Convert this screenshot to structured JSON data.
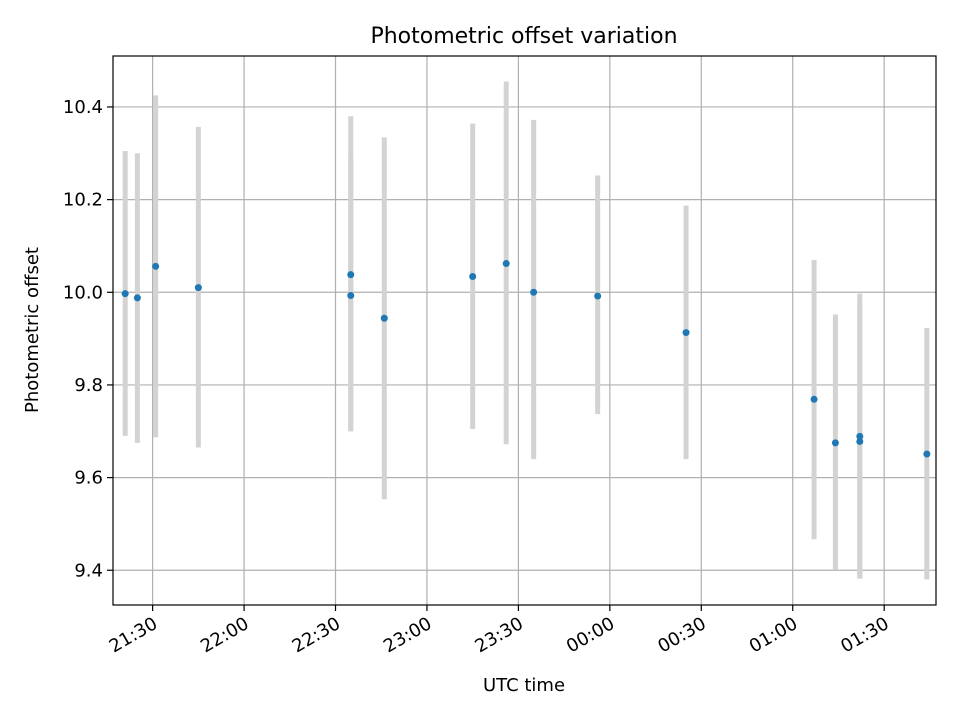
{
  "chart_data": {
    "type": "scatter",
    "title": "Photometric offset variation",
    "xlabel": "UTC time",
    "ylabel": "Photometric offset",
    "x_ticks": [
      "21:30",
      "22:00",
      "22:30",
      "23:00",
      "23:30",
      "00:00",
      "00:30",
      "01:00",
      "01:30"
    ],
    "y_ticks": [
      "9.4",
      "9.6",
      "9.8",
      "10.0",
      "10.2",
      "10.4"
    ],
    "xlim": [
      "21:17",
      "01:47"
    ],
    "ylim": [
      9.325,
      10.51
    ],
    "grid": true,
    "series": [
      {
        "color": "#1f77b4",
        "errorbar_color": "#d3d3d3",
        "x": [
          "21:21",
          "21:25",
          "21:31",
          "21:45",
          "23:15",
          "23:35",
          "23:56",
          "00:25",
          "01:07",
          "01:14",
          "01:22",
          "01:22",
          "01:44",
          "22:35",
          "22:35",
          "22:46",
          "23:26"
        ],
        "y": [
          9.997,
          9.988,
          10.056,
          10.01,
          10.034,
          10.0,
          9.992,
          9.913,
          9.769,
          9.675,
          9.678,
          9.689,
          9.651,
          9.993,
          10.038,
          9.944,
          10.062
        ],
        "yerr_low": [
          9.69,
          9.675,
          9.687,
          9.665,
          9.705,
          9.64,
          9.737,
          9.64,
          9.467,
          9.402,
          9.382,
          9.382,
          9.38,
          9.7,
          9.7,
          9.553,
          9.672
        ],
        "yerr_high": [
          10.305,
          10.3,
          10.425,
          10.357,
          10.364,
          10.372,
          10.252,
          10.187,
          10.07,
          9.952,
          9.972,
          9.997,
          9.923,
          10.29,
          10.38,
          10.334,
          10.455
        ]
      }
    ]
  }
}
